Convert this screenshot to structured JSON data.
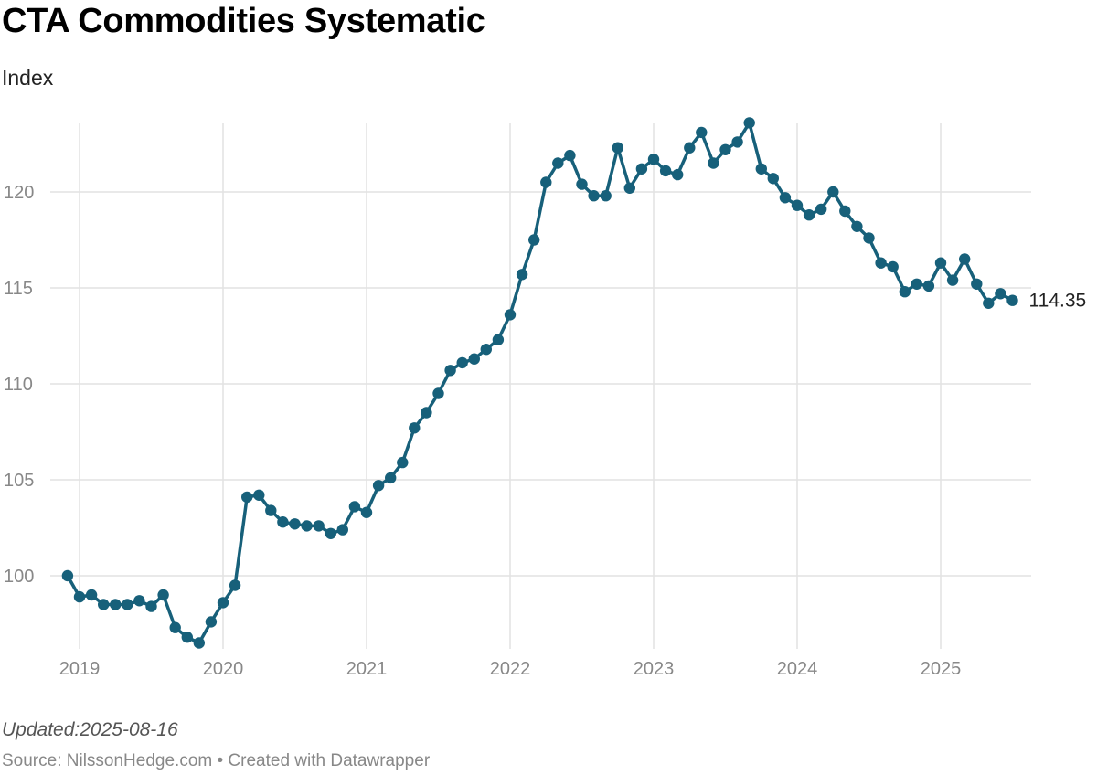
{
  "chart_data": {
    "type": "line",
    "title": "CTA Commodities Systematic",
    "subtitle": "Index",
    "ylabel": "",
    "xlabel": "",
    "x_ticks": [
      "2019",
      "2020",
      "2021",
      "2022",
      "2023",
      "2024",
      "2025"
    ],
    "y_ticks": [
      100,
      105,
      110,
      115,
      120
    ],
    "ylim": [
      96.5,
      124
    ],
    "xlim": [
      "2018-12",
      "2025-07"
    ],
    "grid": true,
    "line_color": "#17607a",
    "end_label": "114.35",
    "series": [
      {
        "points": [
          [
            "2018-12",
            100.0
          ],
          [
            "2019-01",
            98.9
          ],
          [
            "2019-02",
            99.0
          ],
          [
            "2019-03",
            98.5
          ],
          [
            "2019-04",
            98.5
          ],
          [
            "2019-05",
            98.5
          ],
          [
            "2019-06",
            98.7
          ],
          [
            "2019-07",
            98.4
          ],
          [
            "2019-08",
            99.0
          ],
          [
            "2019-09",
            97.3
          ],
          [
            "2019-10",
            96.8
          ],
          [
            "2019-11",
            96.5
          ],
          [
            "2019-12",
            97.6
          ],
          [
            "2020-01",
            98.6
          ],
          [
            "2020-02",
            99.5
          ],
          [
            "2020-03",
            104.1
          ],
          [
            "2020-04",
            104.2
          ],
          [
            "2020-05",
            103.4
          ],
          [
            "2020-06",
            102.8
          ],
          [
            "2020-07",
            102.7
          ],
          [
            "2020-08",
            102.6
          ],
          [
            "2020-09",
            102.6
          ],
          [
            "2020-10",
            102.2
          ],
          [
            "2020-11",
            102.4
          ],
          [
            "2020-12",
            103.6
          ],
          [
            "2021-01",
            103.3
          ],
          [
            "2021-02",
            104.7
          ],
          [
            "2021-03",
            105.1
          ],
          [
            "2021-04",
            105.9
          ],
          [
            "2021-05",
            107.7
          ],
          [
            "2021-06",
            108.5
          ],
          [
            "2021-07",
            109.5
          ],
          [
            "2021-08",
            110.7
          ],
          [
            "2021-09",
            111.1
          ],
          [
            "2021-10",
            111.3
          ],
          [
            "2021-11",
            111.8
          ],
          [
            "2021-12",
            112.3
          ],
          [
            "2022-01",
            113.6
          ],
          [
            "2022-02",
            115.7
          ],
          [
            "2022-03",
            117.5
          ],
          [
            "2022-04",
            120.5
          ],
          [
            "2022-05",
            121.5
          ],
          [
            "2022-06",
            121.9
          ],
          [
            "2022-07",
            120.4
          ],
          [
            "2022-08",
            119.8
          ],
          [
            "2022-09",
            119.8
          ],
          [
            "2022-10",
            122.3
          ],
          [
            "2022-11",
            120.2
          ],
          [
            "2022-12",
            121.2
          ],
          [
            "2023-01",
            121.7
          ],
          [
            "2023-02",
            121.1
          ],
          [
            "2023-03",
            120.9
          ],
          [
            "2023-04",
            122.3
          ],
          [
            "2023-05",
            123.1
          ],
          [
            "2023-06",
            121.5
          ],
          [
            "2023-07",
            122.2
          ],
          [
            "2023-08",
            122.6
          ],
          [
            "2023-09",
            123.6
          ],
          [
            "2023-10",
            121.2
          ],
          [
            "2023-11",
            120.7
          ],
          [
            "2023-12",
            119.7
          ],
          [
            "2024-01",
            119.3
          ],
          [
            "2024-02",
            118.8
          ],
          [
            "2024-03",
            119.1
          ],
          [
            "2024-04",
            120.0
          ],
          [
            "2024-05",
            119.0
          ],
          [
            "2024-06",
            118.2
          ],
          [
            "2024-07",
            117.6
          ],
          [
            "2024-08",
            116.3
          ],
          [
            "2024-09",
            116.1
          ],
          [
            "2024-10",
            114.8
          ],
          [
            "2024-11",
            115.2
          ],
          [
            "2024-12",
            115.1
          ],
          [
            "2025-01",
            116.3
          ],
          [
            "2025-02",
            115.4
          ],
          [
            "2025-03",
            116.5
          ],
          [
            "2025-04",
            115.2
          ],
          [
            "2025-05",
            114.2
          ],
          [
            "2025-06",
            114.7
          ],
          [
            "2025-07",
            114.35
          ]
        ]
      }
    ]
  },
  "footer": {
    "updated": "Updated:2025-08-16",
    "source": "Source: NilssonHedge.com • Created with Datawrapper"
  }
}
